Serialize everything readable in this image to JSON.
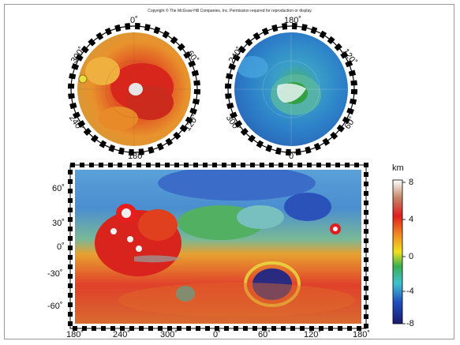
{
  "copyright": "Copyright © The McGraw-Hill Companies, Inc. Permission required for reproduction or display.",
  "north_polar_map": {
    "labels": {
      "top": "0˚",
      "bottom": "180˚",
      "upper_left": "300˚",
      "upper_right": "60˚",
      "lower_left": "240˚",
      "lower_right": "120˚"
    }
  },
  "south_polar_map": {
    "labels": {
      "top": "180˚",
      "bottom": "0˚",
      "upper_left": "240˚",
      "upper_right": "120˚",
      "lower_left": "300˚",
      "lower_right": "60˚"
    }
  },
  "global_map": {
    "lat_labels": [
      "60˚",
      "30˚",
      "0˚",
      "-30˚",
      "-60˚"
    ],
    "lon_labels": [
      "180˚",
      "240˚",
      "300˚",
      "0˚",
      "60˚",
      "120˚",
      "180˚"
    ]
  },
  "colorbar": {
    "unit": "km",
    "ticks": [
      "8",
      "4",
      "0",
      "-4",
      "-8"
    ],
    "colors": [
      "#ffffff",
      "#c8734a",
      "#e01e1e",
      "#f2a020",
      "#f0e020",
      "#38b050",
      "#40c0d0",
      "#2050c0",
      "#1a1a80"
    ]
  }
}
